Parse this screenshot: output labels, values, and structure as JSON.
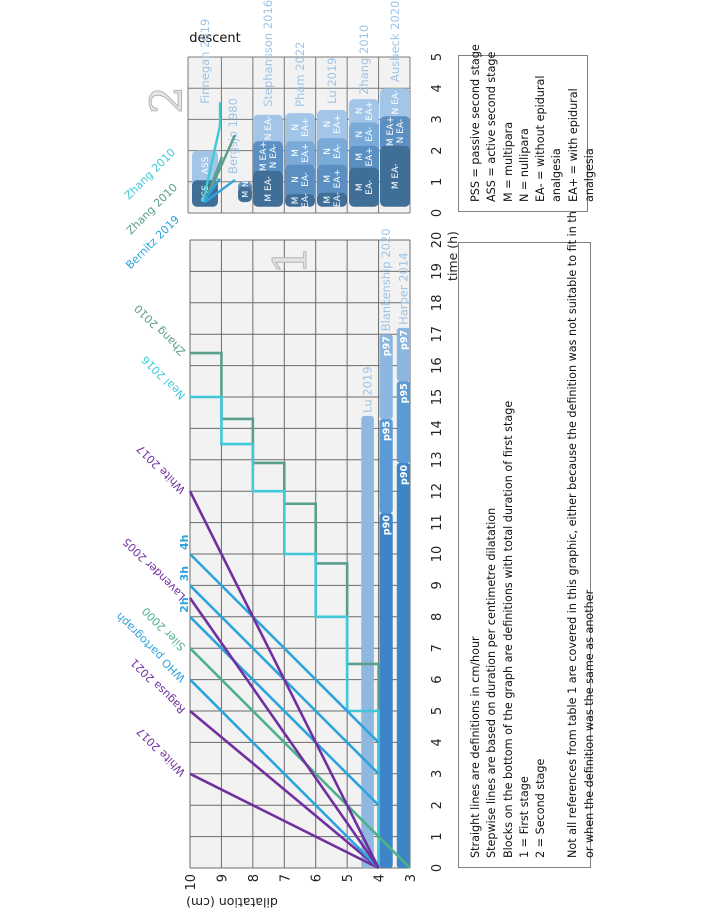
{
  "chart_data": [
    {
      "type": "line",
      "panel_marker": "1",
      "xlabel": "time (h)",
      "ylabel": "dilatation (cm)",
      "xlim": [
        0,
        20
      ],
      "ylim": [
        3,
        10
      ],
      "x_ticks": [
        "0",
        "1",
        "2",
        "3",
        "4",
        "5",
        "6",
        "7",
        "8",
        "9",
        "10",
        "11",
        "12",
        "13",
        "14",
        "15",
        "16",
        "17",
        "18",
        "19",
        "20"
      ],
      "y_ticks": [
        "10",
        "9",
        "8",
        "7",
        "6",
        "5",
        "4",
        "3"
      ],
      "grid": true,
      "straight_lines": [
        {
          "label": "White 2017",
          "color": "#7030a0",
          "points": [
            [
              0,
              4
            ],
            [
              3,
              10
            ]
          ],
          "label_style": "slanted"
        },
        {
          "label": "Ragusa 2021",
          "color": "#7030a0",
          "points": [
            [
              0,
              4
            ],
            [
              5,
              10
            ]
          ],
          "label_style": "slanted"
        },
        {
          "label": "WHO partograph",
          "color": "#2ea3dd",
          "points": [
            [
              0,
              4
            ],
            [
              6,
              10
            ]
          ],
          "label_style": "slanted"
        },
        {
          "label": "Siler 2000",
          "color": "#4fb08c",
          "points": [
            [
              0,
              3
            ],
            [
              7,
              10
            ]
          ],
          "label_style": "slanted"
        },
        {
          "label": "2h",
          "color": "#2ea3dd",
          "points": [
            [
              2,
              4
            ],
            [
              8,
              10
            ]
          ],
          "label_style": "flat"
        },
        {
          "label": "Lavender 2005",
          "color": "#7030a0",
          "points": [
            [
              0,
              4
            ],
            [
              8.6,
              10
            ]
          ],
          "label_style": "slanted"
        },
        {
          "label": "3h",
          "color": "#2ea3dd",
          "points": [
            [
              3,
              4
            ],
            [
              9,
              10
            ]
          ],
          "label_style": "flat"
        },
        {
          "label": "4h",
          "color": "#2ea3dd",
          "points": [
            [
              4,
              4
            ],
            [
              10,
              10
            ]
          ],
          "label_style": "flat"
        },
        {
          "label": "White 2017",
          "color": "#7030a0",
          "points": [
            [
              0,
              4
            ],
            [
              12,
              10
            ]
          ],
          "label_style": "slanted"
        }
      ],
      "stepwise_lines": [
        {
          "label": "Zhang 2010",
          "color": "#5a9e8e",
          "points": [
            [
              0,
              4
            ],
            [
              6.5,
              4
            ],
            [
              6.5,
              5
            ],
            [
              9.7,
              5
            ],
            [
              9.7,
              6
            ],
            [
              11.6,
              6
            ],
            [
              11.6,
              7
            ],
            [
              12.9,
              7
            ],
            [
              12.9,
              8
            ],
            [
              14.3,
              8
            ],
            [
              14.3,
              9
            ],
            [
              16.4,
              9
            ],
            [
              16.4,
              10
            ]
          ]
        },
        {
          "label": "Neal 2016",
          "color": "#40c8d8",
          "points": [
            [
              0,
              4
            ],
            [
              5,
              4
            ],
            [
              5,
              5
            ],
            [
              8,
              5
            ],
            [
              8,
              6
            ],
            [
              10,
              6
            ],
            [
              10,
              7
            ],
            [
              12,
              7
            ],
            [
              12,
              8
            ],
            [
              13.5,
              8
            ],
            [
              13.5,
              9
            ],
            [
              15,
              9
            ],
            [
              15,
              10
            ]
          ]
        }
      ],
      "bars": [
        {
          "label": "Lu 2019",
          "segments": [
            {
              "label": "",
              "start": 0,
              "end": 14.4,
              "color": "#8fb8e0"
            }
          ]
        },
        {
          "label": "Blankenship 2020",
          "segments": [
            {
              "label": "p90",
              "start": 0,
              "end": 11.3,
              "color": "#3d85c6"
            },
            {
              "label": "p95",
              "start": 11.3,
              "end": 14.3,
              "color": "#5b9bd5"
            },
            {
              "label": "p97",
              "start": 14.3,
              "end": 17.0,
              "color": "#8ab6e0"
            }
          ]
        },
        {
          "label": "Harper 2014",
          "segments": [
            {
              "label": "p90",
              "start": 0,
              "end": 12.9,
              "color": "#3d85c6"
            },
            {
              "label": "p95",
              "start": 12.9,
              "end": 15.5,
              "color": "#5b9bd5"
            },
            {
              "label": "p97",
              "start": 15.5,
              "end": 17.2,
              "color": "#8ab6e0"
            }
          ]
        }
      ]
    },
    {
      "type": "bar",
      "title": "descent",
      "panel_marker": "2",
      "xlim": [
        0,
        5
      ],
      "x_ticks": [
        "0",
        "1",
        "2",
        "3",
        "4",
        "5"
      ],
      "grid": true,
      "line_labels": [
        {
          "label": "Zhang 2010",
          "color": "#40c8d8"
        },
        {
          "label": "Zhang 2010",
          "color": "#5a9e8e"
        },
        {
          "label": "Bernitz 2019",
          "color": "#2ea3dd"
        }
      ],
      "shade_colors": [
        "#3f6f97",
        "#5b8fc2",
        "#7aaad8",
        "#a3c5e8"
      ],
      "rows": [
        {
          "study": "Finnegan 2019",
          "label_at": 3.5,
          "segments": [
            {
              "label": "PSS",
              "start": 0.2,
              "end": 1.05,
              "shade": 0
            },
            {
              "label": "ASS",
              "start": 1.05,
              "end": 2.0,
              "shade": 3
            }
          ]
        },
        {
          "study": "Bergsjo 1980",
          "label_at": 1.25,
          "segments": [
            {
              "label": "M",
              "start": 0.35,
              "end": 0.85,
              "shade": 0
            },
            {
              "label": "N",
              "start": 0.85,
              "end": 1.0,
              "shade": 1
            }
          ]
        },
        {
          "study": "Stephansson 2016",
          "label_at": 3.4,
          "segments": [
            {
              "label": "M EA-",
              "start": 0.2,
              "end": 1.35,
              "shade": 0
            },
            {
              "label": "M EA+\nN EA-",
              "start": 1.35,
              "end": 2.3,
              "shade": 1
            },
            {
              "label": "N EA-",
              "start": 2.3,
              "end": 3.15,
              "shade": 3
            }
          ]
        },
        {
          "study": "Pham 2022",
          "label_at": 3.4,
          "segments": [
            {
              "label": "M\nEA-",
              "start": 0.2,
              "end": 0.6,
              "shade": 0
            },
            {
              "label": "N\nEA-",
              "start": 0.6,
              "end": 1.55,
              "shade": 1
            },
            {
              "label": "M\nEA+",
              "start": 1.55,
              "end": 2.3,
              "shade": 2
            },
            {
              "label": "N\nEA+",
              "start": 2.3,
              "end": 3.2,
              "shade": 3
            }
          ]
        },
        {
          "study": "Lu 2019",
          "label_at": 3.5,
          "segments": [
            {
              "label": "M\nEA-",
              "start": 0.2,
              "end": 0.65,
              "shade": 0
            },
            {
              "label": "M\nEA+",
              "start": 0.65,
              "end": 1.55,
              "shade": 1
            },
            {
              "label": "N\nEA-",
              "start": 1.55,
              "end": 2.4,
              "shade": 2
            },
            {
              "label": "N\nEA+",
              "start": 2.4,
              "end": 3.3,
              "shade": 3
            }
          ]
        },
        {
          "study": "Zhang 2010",
          "label_at": 3.8,
          "segments": [
            {
              "label": "M\nEA-",
              "start": 0.2,
              "end": 1.45,
              "shade": 0
            },
            {
              "label": "M\nEA+",
              "start": 1.45,
              "end": 2.15,
              "shade": 1
            },
            {
              "label": "N\nEA-",
              "start": 2.15,
              "end": 2.9,
              "shade": 2
            },
            {
              "label": "N\nEA+",
              "start": 2.9,
              "end": 3.65,
              "shade": 3
            }
          ]
        },
        {
          "study": "Ausbeck 2020",
          "label_at": 4.2,
          "segments": [
            {
              "label": "M EA-",
              "start": 0.2,
              "end": 2.15,
              "shade": 0
            },
            {
              "label": "M EA+\nN EA-",
              "start": 2.15,
              "end": 3.1,
              "shade": 1
            },
            {
              "label": "N EA-",
              "start": 3.1,
              "end": 4.0,
              "shade": 3
            }
          ]
        }
      ]
    }
  ],
  "notes": {
    "lines": [
      "Straight lines are definitions in cm/hour",
      "Stepwise lines are based on duration per centimetre dilatation",
      "Blocks on the bottom of the graph are definitions with total duration of first stage",
      "1 = First stage",
      "2 = Second stage"
    ],
    "footnote": [
      "Not all references from table 1 are covered in this graphic, either because the definition was not suitable to fit in the graphic",
      "or when the definition was the same as another"
    ]
  },
  "abbreviations": [
    "PSS = passive second stage",
    "ASS = active second stage",
    "M = multipara",
    "N = nullipara",
    "EA- = without epidural",
    "analgesia",
    "EA+ = with epidural",
    "analgesia"
  ]
}
